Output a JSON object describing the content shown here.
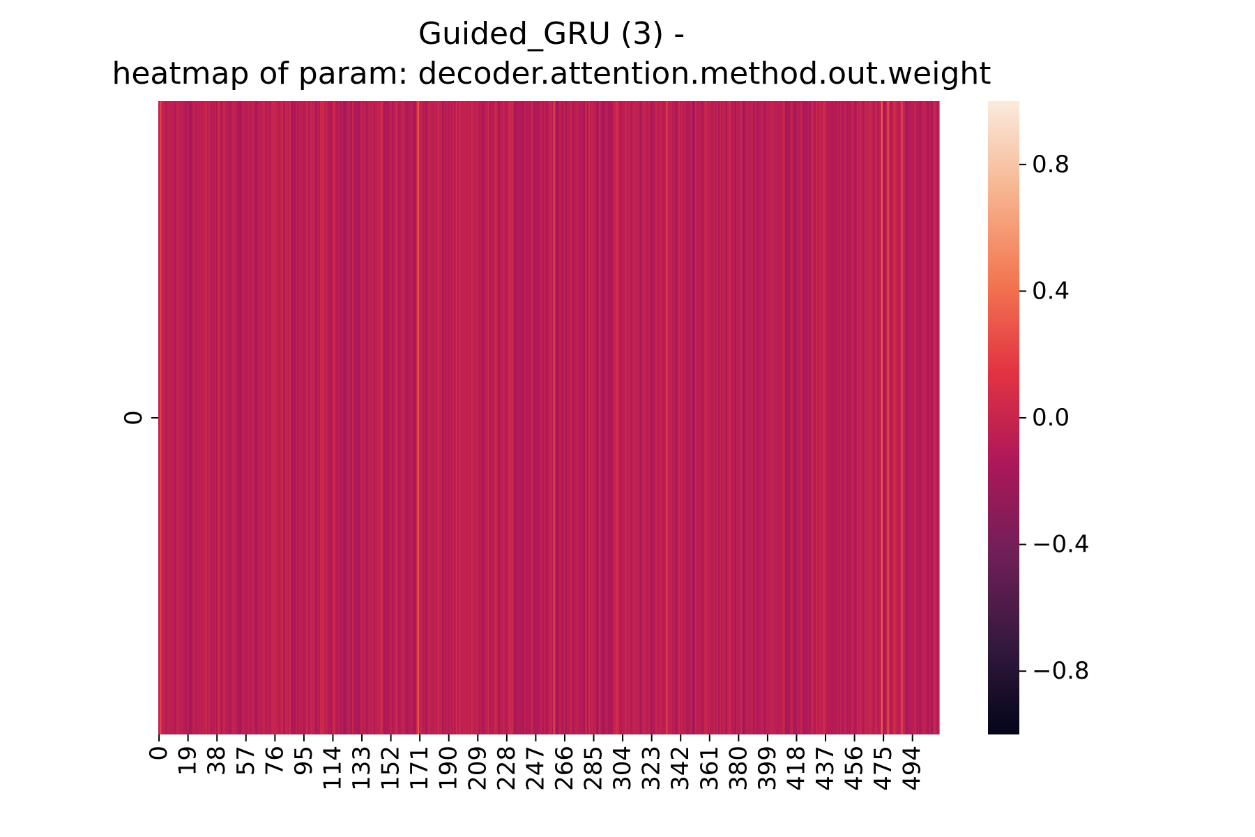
{
  "chart_data": {
    "type": "heatmap",
    "title_line1": "Guided_GRU (3) -",
    "title_line2": "heatmap of param: decoder.attention.method.out.weight",
    "rows": 1,
    "columns": 512,
    "y_tick_labels": [
      "0"
    ],
    "x_tick_labels": [
      "0",
      "19",
      "38",
      "57",
      "76",
      "95",
      "114",
      "133",
      "152",
      "171",
      "190",
      "209",
      "228",
      "247",
      "266",
      "285",
      "304",
      "323",
      "342",
      "361",
      "380",
      "399",
      "418",
      "437",
      "456",
      "475",
      "494"
    ],
    "x_tick_step": 19,
    "colorbar": {
      "vmin": -1.0,
      "vmax": 1.0,
      "ticks": [
        0.8,
        0.4,
        0.0,
        -0.4,
        -0.8
      ],
      "tick_labels": [
        "0.8",
        "0.4",
        "0.0",
        "−0.4",
        "−0.8"
      ],
      "colormap": "rocket",
      "colormap_stops": [
        "#03051a",
        "#35193e",
        "#701f57",
        "#ad1759",
        "#e13342",
        "#f37651",
        "#f6b48f",
        "#faebdd"
      ]
    },
    "values_summary": "512 weights in a single row, values mostly between -0.25 and 0.15 (centered slightly below 0), with a few brighter columns near 0.2-0.3",
    "highlight_columns": [
      {
        "index": 1,
        "value": 0.22
      },
      {
        "index": 170,
        "value": 0.28
      },
      {
        "index": 259,
        "value": 0.22
      },
      {
        "index": 333,
        "value": 0.2
      },
      {
        "index": 474,
        "value": 0.3
      },
      {
        "index": 478,
        "value": 0.26
      },
      {
        "index": 487,
        "value": 0.22
      }
    ]
  }
}
